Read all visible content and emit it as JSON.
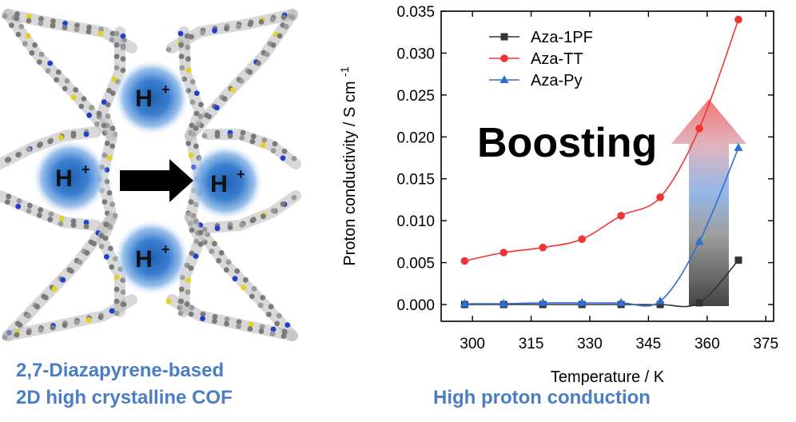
{
  "left_panel": {
    "ion_label": "H",
    "ion_charge": "+",
    "caption_line1": "2,7-Diazapyrene-based",
    "caption_line2": "2D high crystalline COF"
  },
  "right_panel": {
    "caption": "High proton conduction",
    "boost_label": "Boosting"
  },
  "chart_data": {
    "type": "line",
    "xlabel": "Temperature / K",
    "ylabel": "Proton conductivity / S cm",
    "ylabel_superscript": "-1",
    "xlim": [
      292,
      377
    ],
    "ylim": [
      -0.002,
      0.035
    ],
    "x_ticks": [
      "300",
      "315",
      "330",
      "345",
      "360",
      "375"
    ],
    "y_ticks": [
      "0.000",
      "0.005",
      "0.010",
      "0.015",
      "0.020",
      "0.025",
      "0.030",
      "0.035"
    ],
    "x": [
      298,
      308,
      318,
      328,
      338,
      348,
      358,
      368
    ],
    "legend_position": "top-left",
    "series": [
      {
        "name": "Aza-1PF",
        "marker": "square",
        "color": "#333333",
        "values": [
          0.0,
          0.0,
          0.0,
          0.0,
          0.0,
          0.0,
          0.0002,
          0.0053
        ]
      },
      {
        "name": "Aza-TT",
        "marker": "circle",
        "color": "#ee3434",
        "values": [
          0.0052,
          0.0062,
          0.0068,
          0.0078,
          0.0106,
          0.0128,
          0.021,
          0.034
        ]
      },
      {
        "name": "Aza-Py",
        "marker": "triangle",
        "color": "#2e6fd4",
        "values": [
          0.0001,
          0.0001,
          0.0002,
          0.0002,
          0.0002,
          0.0004,
          0.0075,
          0.0187
        ]
      }
    ]
  }
}
